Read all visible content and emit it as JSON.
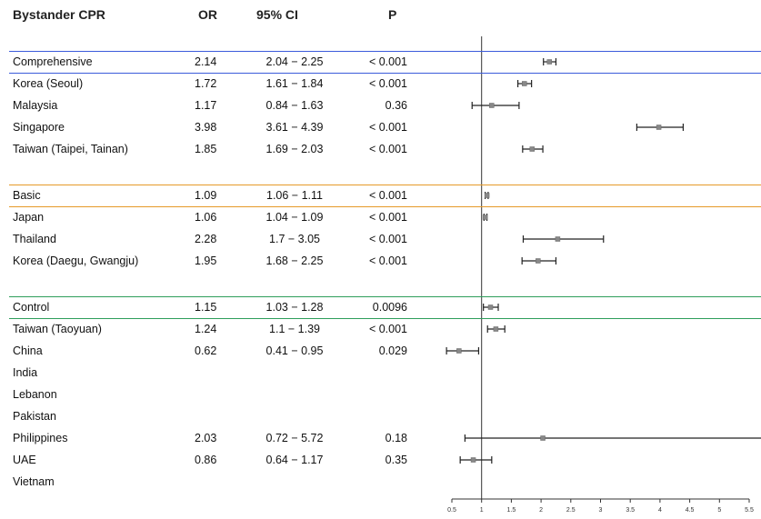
{
  "header": {
    "name": "Bystander CPR",
    "or": "OR",
    "ci": "95% CI",
    "p": "P"
  },
  "group_colors": {
    "Comprehensive": "#3b5bdb",
    "Basic": "#e69a28",
    "Control": "#2e9e5b"
  },
  "rows": [
    {
      "name": "Comprehensive",
      "or": "2.14",
      "ci": "2.04 − 2.25",
      "p": "< 0.001"
    },
    {
      "name": "Korea (Seoul)",
      "or": "1.72",
      "ci": "1.61 − 1.84",
      "p": "< 0.001"
    },
    {
      "name": "Malaysia",
      "or": "1.17",
      "ci": "0.84 − 1.63",
      "p": "0.36"
    },
    {
      "name": "Singapore",
      "or": "3.98",
      "ci": "3.61 − 4.39",
      "p": "< 0.001"
    },
    {
      "name": "Taiwan (Taipei, Tainan)",
      "or": "1.85",
      "ci": "1.69 − 2.03",
      "p": "< 0.001"
    },
    {
      "name": "Basic",
      "or": "1.09",
      "ci": "1.06 − 1.11",
      "p": "< 0.001"
    },
    {
      "name": "Japan",
      "or": "1.06",
      "ci": "1.04 − 1.09",
      "p": "< 0.001"
    },
    {
      "name": "Thailand",
      "or": "2.28",
      "ci": "1.7 − 3.05",
      "p": "< 0.001"
    },
    {
      "name": "Korea (Daegu, Gwangju)",
      "or": "1.95",
      "ci": "1.68 − 2.25",
      "p": "< 0.001"
    },
    {
      "name": "Control",
      "or": "1.15",
      "ci": "1.03 − 1.28",
      "p": "0.0096"
    },
    {
      "name": "Taiwan (Taoyuan)",
      "or": "1.24",
      "ci": "1.1 − 1.39",
      "p": "< 0.001"
    },
    {
      "name": "China",
      "or": "0.62",
      "ci": "0.41 − 0.95",
      "p": "0.029"
    },
    {
      "name": "India",
      "or": "",
      "ci": "",
      "p": ""
    },
    {
      "name": "Lebanon",
      "or": "",
      "ci": "",
      "p": ""
    },
    {
      "name": "Pakistan",
      "or": "",
      "ci": "",
      "p": ""
    },
    {
      "name": "Philippines",
      "or": "2.03",
      "ci": "0.72 − 5.72",
      "p": "0.18"
    },
    {
      "name": "UAE",
      "or": "0.86",
      "ci": "0.64 − 1.17",
      "p": "0.35"
    },
    {
      "name": "Vietnam",
      "or": "",
      "ci": "",
      "p": ""
    }
  ],
  "chart_data": {
    "type": "scatter",
    "subtype": "forest-plot",
    "title": "",
    "xlabel": "",
    "ylabel": "",
    "xlim": [
      0.5,
      5.5
    ],
    "reference_line": 1,
    "xticks": [
      "0.5",
      "1",
      "1.5",
      "2",
      "2.5",
      "3",
      "3.5",
      "4",
      "4.5",
      "5",
      "5.5"
    ],
    "points": [
      {
        "label": "Comprehensive",
        "or": 2.14,
        "lo": 2.04,
        "hi": 2.25
      },
      {
        "label": "Korea (Seoul)",
        "or": 1.72,
        "lo": 1.61,
        "hi": 1.84
      },
      {
        "label": "Malaysia",
        "or": 1.17,
        "lo": 0.84,
        "hi": 1.63
      },
      {
        "label": "Singapore",
        "or": 3.98,
        "lo": 3.61,
        "hi": 4.39
      },
      {
        "label": "Taiwan (Taipei, Tainan)",
        "or": 1.85,
        "lo": 1.69,
        "hi": 2.03
      },
      {
        "label": "Basic",
        "or": 1.09,
        "lo": 1.06,
        "hi": 1.11
      },
      {
        "label": "Japan",
        "or": 1.06,
        "lo": 1.04,
        "hi": 1.09
      },
      {
        "label": "Thailand",
        "or": 2.28,
        "lo": 1.7,
        "hi": 3.05
      },
      {
        "label": "Korea (Daegu, Gwangju)",
        "or": 1.95,
        "lo": 1.68,
        "hi": 2.25
      },
      {
        "label": "Control",
        "or": 1.15,
        "lo": 1.03,
        "hi": 1.28
      },
      {
        "label": "Taiwan (Taoyuan)",
        "or": 1.24,
        "lo": 1.1,
        "hi": 1.39
      },
      {
        "label": "China",
        "or": 0.62,
        "lo": 0.41,
        "hi": 0.95
      },
      {
        "label": "India",
        "or": null,
        "lo": null,
        "hi": null
      },
      {
        "label": "Lebanon",
        "or": null,
        "lo": null,
        "hi": null
      },
      {
        "label": "Pakistan",
        "or": null,
        "lo": null,
        "hi": null
      },
      {
        "label": "Philippines",
        "or": 2.03,
        "lo": 0.72,
        "hi": 5.72
      },
      {
        "label": "UAE",
        "or": 0.86,
        "lo": 0.64,
        "hi": 1.17
      },
      {
        "label": "Vietnam",
        "or": null,
        "lo": null,
        "hi": null
      }
    ]
  }
}
